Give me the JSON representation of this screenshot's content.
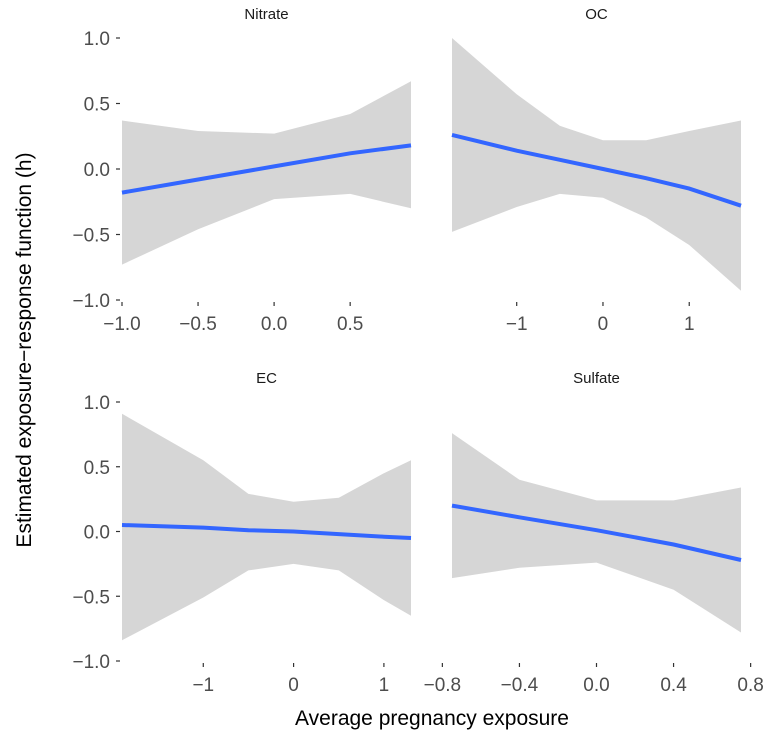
{
  "chart_data": {
    "type": "line",
    "xlabel": "Average pregnancy exposure",
    "ylabel": "Estimated exposure−response function  (h)",
    "grid": false,
    "shared_y": {
      "ylim": [
        -1.0,
        1.0
      ],
      "ticks": [
        -1.0,
        -0.5,
        0.0,
        0.5,
        1.0
      ],
      "tick_labels": [
        "−1.0",
        "−0.5",
        "0.0",
        "0.5",
        "1.0"
      ]
    },
    "colors": {
      "line": "#3366ff",
      "band": "#d6d6d6"
    },
    "panels": [
      {
        "title": "Nitrate",
        "xlim": [
          -1.0,
          0.9
        ],
        "xticks": [
          -1.0,
          -0.5,
          0.0,
          0.5
        ],
        "xtick_labels": [
          "−1.0",
          "−0.5",
          "0.0",
          "0.5"
        ],
        "x": [
          -1.0,
          -0.5,
          0.0,
          0.5,
          0.9
        ],
        "fit": [
          -0.18,
          -0.08,
          0.02,
          0.12,
          0.18
        ],
        "upper": [
          0.37,
          0.29,
          0.27,
          0.42,
          0.67
        ],
        "lower": [
          -0.73,
          -0.46,
          -0.23,
          -0.19,
          -0.3
        ]
      },
      {
        "title": "OC",
        "xlim": [
          -1.75,
          1.6
        ],
        "xticks": [
          -1,
          0,
          1
        ],
        "xtick_labels": [
          "−1",
          "0",
          "1"
        ],
        "x": [
          -1.75,
          -1.0,
          -0.5,
          0.0,
          0.5,
          1.0,
          1.6
        ],
        "fit": [
          0.26,
          0.14,
          0.07,
          0.0,
          -0.07,
          -0.15,
          -0.28
        ],
        "upper": [
          1.0,
          0.57,
          0.33,
          0.22,
          0.22,
          0.29,
          0.37
        ],
        "lower": [
          -0.48,
          -0.29,
          -0.19,
          -0.22,
          -0.37,
          -0.58,
          -0.93
        ]
      },
      {
        "title": "EC",
        "xlim": [
          -1.9,
          1.3
        ],
        "xticks": [
          -1,
          0,
          1
        ],
        "xtick_labels": [
          "−1",
          "0",
          "1"
        ],
        "x": [
          -1.9,
          -1.0,
          -0.5,
          0.0,
          0.5,
          1.0,
          1.3
        ],
        "fit": [
          0.05,
          0.03,
          0.01,
          0.0,
          -0.02,
          -0.04,
          -0.05
        ],
        "upper": [
          0.91,
          0.55,
          0.29,
          0.23,
          0.26,
          0.45,
          0.55
        ],
        "lower": [
          -0.84,
          -0.51,
          -0.3,
          -0.25,
          -0.3,
          -0.53,
          -0.65
        ]
      },
      {
        "title": "Sulfate",
        "xlim": [
          -0.75,
          0.75
        ],
        "xticks": [
          -0.8,
          -0.4,
          0.0,
          0.4,
          0.8
        ],
        "xtick_labels": [
          "−0.8",
          "−0.4",
          "0.0",
          "0.4",
          "0.8"
        ],
        "x": [
          -0.75,
          -0.4,
          0.0,
          0.4,
          0.75
        ],
        "fit": [
          0.2,
          0.11,
          0.01,
          -0.1,
          -0.22
        ],
        "upper": [
          0.76,
          0.4,
          0.24,
          0.24,
          0.34
        ],
        "lower": [
          -0.36,
          -0.28,
          -0.24,
          -0.45,
          -0.78
        ]
      }
    ]
  }
}
